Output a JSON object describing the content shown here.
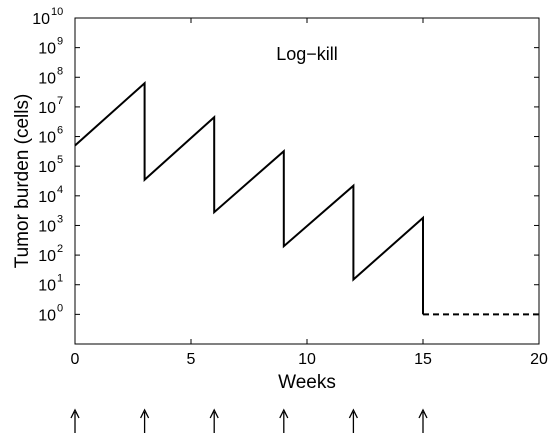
{
  "chart_data": {
    "type": "line",
    "title": "",
    "xlabel": "Weeks",
    "ylabel": "Tumor burden (cells)",
    "xlim": [
      0,
      20
    ],
    "ylim": [
      0.1,
      10000000000
    ],
    "yscale": "log",
    "grid": false,
    "x_ticks": [
      0,
      5,
      10,
      15,
      20
    ],
    "x_tick_labels": [
      "0",
      "5",
      "10",
      "15",
      "20"
    ],
    "y_tick_base": "10",
    "y_tick_exponents": [
      "0",
      "1",
      "2",
      "3",
      "4",
      "5",
      "6",
      "7",
      "8",
      "9",
      "10"
    ],
    "y_ticks": [
      1,
      10,
      100,
      1000,
      10000,
      100000,
      1000000,
      10000000,
      100000000,
      1000000000,
      10000000000
    ],
    "annotations": [
      {
        "text": "Log−kill",
        "x": 10.8,
        "y": 200000000
      }
    ],
    "series": [
      {
        "style": "solid",
        "x": [
          0,
          3,
          3,
          6,
          6,
          9,
          9,
          12,
          12,
          15,
          15
        ],
        "y": [
          500000,
          63000000,
          35000,
          4500000,
          2800,
          320000,
          200,
          22000,
          15,
          1800,
          1
        ]
      },
      {
        "style": "dashed",
        "x": [
          15,
          20
        ],
        "y": [
          1,
          1
        ]
      }
    ],
    "treatment_arrows_x": [
      0,
      3,
      6,
      9,
      12,
      15
    ]
  }
}
